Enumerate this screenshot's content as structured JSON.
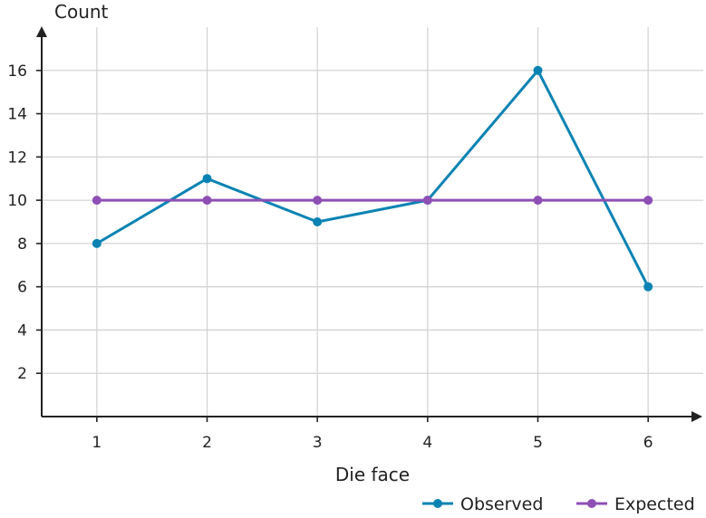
{
  "chart_data": {
    "type": "line",
    "x": [
      1,
      2,
      3,
      4,
      5,
      6
    ],
    "x_ticks": [
      "1",
      "2",
      "3",
      "4",
      "5",
      "6"
    ],
    "y_ticks": [
      "2",
      "4",
      "6",
      "8",
      "10",
      "12",
      "14",
      "16"
    ],
    "xlabel": "Die face",
    "ylabel": "Count",
    "xlim": [
      0.5,
      6.5
    ],
    "ylim": [
      0,
      18
    ],
    "grid": true,
    "legend_placement": "bottom-right",
    "series": [
      {
        "name": "Observed",
        "values": [
          8,
          11,
          9,
          10,
          16,
          6
        ],
        "color": "#0a83b3"
      },
      {
        "name": "Expected",
        "values": [
          10,
          10,
          10,
          10,
          10,
          10
        ],
        "color": "#8e4fb5"
      }
    ]
  }
}
